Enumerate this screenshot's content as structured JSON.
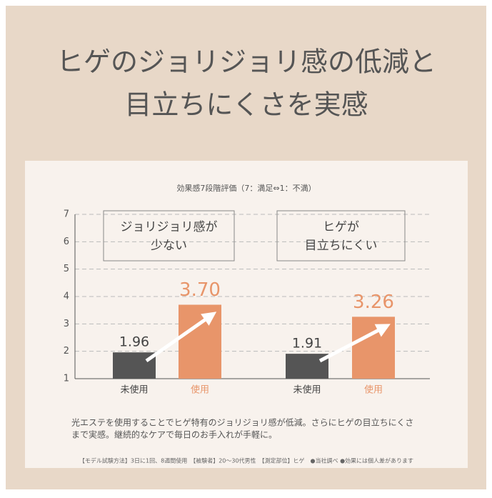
{
  "header": {
    "title_lines": [
      "ヒゲのジョリジョリ感の低減と",
      "目立ちにくさを実感"
    ]
  },
  "chart_data": {
    "type": "bar",
    "title": "効果感7段階評価（7：満足⇔1：不満）",
    "categories": [
      "未使用",
      "使用",
      "未使用",
      "使用"
    ],
    "values": [
      1.96,
      3.7,
      1.91,
      3.26
    ],
    "value_labels": [
      "1.96",
      "3.70",
      "1.91",
      "3.26"
    ],
    "colors": [
      "#555555",
      "#e8956a",
      "#555555",
      "#e8956a"
    ],
    "ylim": [
      1,
      7
    ],
    "yticks": [
      1,
      2,
      3,
      4,
      5,
      6,
      7
    ],
    "grid": true,
    "annotations": [
      [
        "ジョリジョリ感が",
        "少ない"
      ],
      [
        "ヒゲが",
        "目立ちにくい"
      ]
    ]
  },
  "description": [
    "光エステを使用することでヒゲ特有のジョリジョリ感が低減。さらにヒゲの目立ちにくさ",
    "まで実感。継続的なケアで毎日のお手入れが手軽に。"
  ],
  "footnote": "【モデル試験方法】3日に1回、8週間使用　【被験者】20～30代男性　【測定部位】ヒゲ　●当社調べ ●効果には個人差があります"
}
